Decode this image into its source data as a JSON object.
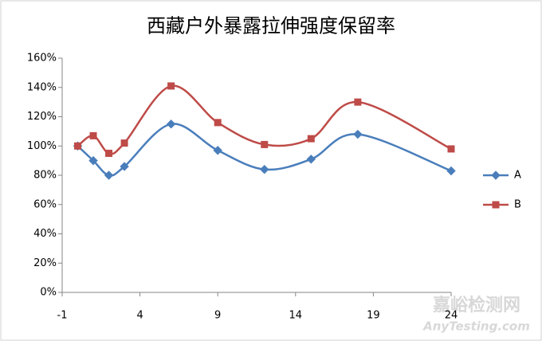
{
  "chart_data": {
    "type": "line",
    "title": "西藏户外暴露拉伸强度保留率",
    "x": [
      0,
      1,
      2,
      3,
      6,
      9,
      12,
      15,
      18,
      24
    ],
    "series": [
      {
        "name": "A",
        "color": "#4a7ebb",
        "marker": "diamond",
        "values": [
          100,
          90,
          80,
          86,
          115,
          97,
          84,
          91,
          108,
          83
        ]
      },
      {
        "name": "B",
        "color": "#be4b48",
        "marker": "square",
        "values": [
          100,
          107,
          95,
          102,
          141,
          116,
          101,
          105,
          130,
          98
        ]
      }
    ],
    "xlim": [
      -1,
      24
    ],
    "xticks": [
      -1,
      4,
      9,
      14,
      19,
      24
    ],
    "ylim": [
      0,
      160
    ],
    "yticks": [
      {
        "value": 0,
        "label": "0%"
      },
      {
        "value": 20,
        "label": "20%"
      },
      {
        "value": 40,
        "label": "40%"
      },
      {
        "value": 60,
        "label": "60%"
      },
      {
        "value": 80,
        "label": "80%"
      },
      {
        "value": 100,
        "label": "100%"
      },
      {
        "value": 120,
        "label": "120%"
      },
      {
        "value": 140,
        "label": "140%"
      },
      {
        "value": 160,
        "label": "160%"
      }
    ],
    "legend": "right",
    "smooth": true
  },
  "watermark": {
    "name": "嘉峪检测网",
    "url": "AnyTesting.com"
  }
}
